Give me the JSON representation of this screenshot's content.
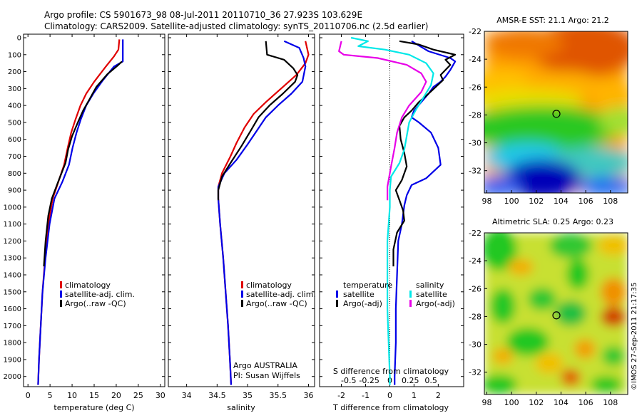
{
  "header": {
    "line1": "Argo profile: CS 5901673_98 08-Jul-2011 20110710_36 27.923S 103.629E",
    "line2": "Climatology: CARS2009. Satellite-adjusted climatology: synTS_20110706.nc (2.5d earlier)"
  },
  "side_stamp": "©IMOS 27-Sep-2011 21:17:35",
  "colors": {
    "climatology": "#e00000",
    "satellite_adj": "#0000e8",
    "argo": "#000000",
    "sat_cyan": "#00e8e8",
    "argo_magenta": "#e800e8"
  },
  "chart_data": [
    {
      "type": "line",
      "id": "temperature",
      "xlabel": "temperature (deg C)",
      "ylabel": "",
      "xlim": [
        -1,
        31
      ],
      "ylim": [
        0,
        2060
      ],
      "y_reversed": true,
      "xticks": [
        0,
        5,
        10,
        15,
        20,
        25,
        30
      ],
      "xtick_labels": [
        "0",
        "5",
        "10",
        "15",
        "20",
        "25",
        "30"
      ],
      "yticks": [
        0,
        100,
        200,
        300,
        400,
        500,
        600,
        700,
        800,
        900,
        1000,
        1100,
        1200,
        1300,
        1400,
        1500,
        1600,
        1700,
        1800,
        1900,
        2000
      ],
      "ytick_labels": [
        "0",
        "100",
        "200",
        "300",
        "400",
        "500",
        "600",
        "700",
        "800",
        "900",
        "1000",
        "1100",
        "1200",
        "1300",
        "1400",
        "1500",
        "1600",
        "1700",
        "1800",
        "1900",
        "2000"
      ],
      "legend": [
        "climatology",
        "satellite-adj. clim.",
        "Argo(..raw -QC)"
      ],
      "legend_position": "lower-center",
      "series": [
        {
          "name": "climatology",
          "color": "#e00000",
          "points": [
            [
              20.7,
              10
            ],
            [
              20.5,
              70
            ],
            [
              19.5,
              110
            ],
            [
              17.5,
              175
            ],
            [
              15.0,
              260
            ],
            [
              13.2,
              330
            ],
            [
              11.9,
              400
            ],
            [
              10.8,
              480
            ],
            [
              9.8,
              560
            ],
            [
              9.0,
              650
            ],
            [
              8.2,
              750
            ],
            [
              6.9,
              850
            ],
            [
              5.6,
              950
            ],
            [
              4.6,
              1100
            ],
            [
              3.9,
              1300
            ],
            [
              3.3,
              1500
            ],
            [
              2.9,
              1700
            ],
            [
              2.5,
              1900
            ],
            [
              2.3,
              2050
            ]
          ]
        },
        {
          "name": "satellite-adj. clim.",
          "color": "#0000e8",
          "points": [
            [
              21.5,
              10
            ],
            [
              21.5,
              140
            ],
            [
              19.5,
              170
            ],
            [
              17.0,
              250
            ],
            [
              14.8,
              330
            ],
            [
              13.2,
              400
            ],
            [
              12.0,
              480
            ],
            [
              11.0,
              560
            ],
            [
              10.1,
              650
            ],
            [
              9.3,
              750
            ],
            [
              7.8,
              850
            ],
            [
              6.0,
              950
            ],
            [
              4.9,
              1100
            ],
            [
              4.0,
              1300
            ],
            [
              3.3,
              1500
            ],
            [
              2.9,
              1700
            ],
            [
              2.5,
              1900
            ],
            [
              2.3,
              2050
            ]
          ]
        },
        {
          "name": "Argo(..raw -QC)",
          "color": "#000000",
          "points": [
            [
              21.3,
              140
            ],
            [
              20.3,
              165
            ],
            [
              18.0,
              215
            ],
            [
              15.5,
              290
            ],
            [
              13.8,
              370
            ],
            [
              12.5,
              430
            ],
            [
              11.3,
              500
            ],
            [
              10.0,
              580
            ],
            [
              9.1,
              660
            ],
            [
              8.5,
              740
            ],
            [
              7.0,
              840
            ],
            [
              5.4,
              950
            ],
            [
              4.6,
              1050
            ],
            [
              4.0,
              1200
            ],
            [
              3.6,
              1350
            ]
          ]
        }
      ]
    },
    {
      "type": "line",
      "id": "salinity",
      "xlabel": "salinity",
      "ylabel": "",
      "xlim": [
        33.7,
        36.1
      ],
      "ylim": [
        0,
        2060
      ],
      "y_reversed": true,
      "xticks": [
        34,
        34.5,
        35,
        35.5,
        36
      ],
      "xtick_labels": [
        "34",
        "34.5",
        "35",
        "35.5",
        "36"
      ],
      "legend": [
        "climatology",
        "satellite-adj. clim.",
        "Argo(..raw -QC)"
      ],
      "legend_position": "lower-right",
      "annotation": [
        "Argo AUSTRALIA",
        "PI: Susan Wijffels"
      ],
      "series": [
        {
          "name": "climatology",
          "color": "#e00000",
          "points": [
            [
              35.95,
              20
            ],
            [
              36.0,
              100
            ],
            [
              35.95,
              150
            ],
            [
              35.8,
              220
            ],
            [
              35.55,
              300
            ],
            [
              35.3,
              380
            ],
            [
              35.1,
              450
            ],
            [
              34.95,
              530
            ],
            [
              34.82,
              620
            ],
            [
              34.72,
              700
            ],
            [
              34.58,
              800
            ],
            [
              34.52,
              880
            ],
            [
              34.52,
              950
            ],
            [
              34.55,
              1100
            ],
            [
              34.6,
              1300
            ],
            [
              34.64,
              1500
            ],
            [
              34.68,
              1700
            ],
            [
              34.71,
              1900
            ],
            [
              34.73,
              2050
            ]
          ]
        },
        {
          "name": "satellite-adj. clim.",
          "color": "#0000e8",
          "points": [
            [
              35.6,
              20
            ],
            [
              35.85,
              60
            ],
            [
              35.92,
              120
            ],
            [
              35.95,
              170
            ],
            [
              35.9,
              260
            ],
            [
              35.72,
              330
            ],
            [
              35.5,
              400
            ],
            [
              35.3,
              470
            ],
            [
              35.15,
              550
            ],
            [
              35.0,
              630
            ],
            [
              34.82,
              720
            ],
            [
              34.62,
              800
            ],
            [
              34.52,
              880
            ],
            [
              34.52,
              950
            ],
            [
              34.55,
              1100
            ],
            [
              34.6,
              1300
            ],
            [
              34.64,
              1500
            ],
            [
              34.68,
              1700
            ],
            [
              34.71,
              1900
            ],
            [
              34.73,
              2050
            ]
          ]
        },
        {
          "name": "Argo(..raw -QC)",
          "color": "#000000",
          "points": [
            [
              35.3,
              20
            ],
            [
              35.32,
              100
            ],
            [
              35.6,
              130
            ],
            [
              35.75,
              180
            ],
            [
              35.82,
              220
            ],
            [
              35.78,
              260
            ],
            [
              35.58,
              330
            ],
            [
              35.36,
              400
            ],
            [
              35.18,
              470
            ],
            [
              35.05,
              550
            ],
            [
              34.9,
              640
            ],
            [
              34.72,
              740
            ],
            [
              34.58,
              820
            ],
            [
              34.52,
              900
            ],
            [
              34.52,
              960
            ]
          ]
        }
      ]
    },
    {
      "type": "line",
      "id": "difference",
      "xlabel": "T difference from climatology",
      "xlabel_top": "S difference from climatology",
      "xlim": [
        -2.9,
        3.05
      ],
      "ylim": [
        0,
        2060
      ],
      "y_reversed": true,
      "xticks": [
        -2,
        -1,
        0,
        1,
        2
      ],
      "xtick_labels": [
        "-2",
        "-1",
        "0",
        "1",
        "2"
      ],
      "xticks_top": [
        -0.5,
        -0.25,
        0,
        0.25,
        0.5
      ],
      "xtick_labels_top": [
        "-0.5",
        "-0.25",
        "0",
        "0.25",
        "0.5"
      ],
      "zero_line": "dotted",
      "legend_left_title": "temperature",
      "legend_left": [
        "satellite",
        "Argo(-adj)"
      ],
      "legend_right_title": "salinity",
      "legend_right": [
        "satellite",
        "Argo(-adj)"
      ],
      "series": [
        {
          "name": "satellite",
          "group": "temperature",
          "color": "#0000e8",
          "points": [
            [
              0.9,
              20
            ],
            [
              1.6,
              80
            ],
            [
              2.5,
              120
            ],
            [
              2.7,
              140
            ],
            [
              2.5,
              190
            ],
            [
              2.3,
              230
            ],
            [
              2.1,
              260
            ],
            [
              1.8,
              290
            ],
            [
              1.6,
              330
            ],
            [
              1.3,
              380
            ],
            [
              1.0,
              430
            ],
            [
              0.9,
              470
            ],
            [
              1.2,
              500
            ],
            [
              1.7,
              560
            ],
            [
              2.0,
              650
            ],
            [
              2.1,
              750
            ],
            [
              1.5,
              830
            ],
            [
              0.9,
              870
            ],
            [
              0.7,
              930
            ],
            [
              0.6,
              990
            ],
            [
              0.5,
              1100
            ],
            [
              0.35,
              1200
            ],
            [
              0.3,
              1400
            ],
            [
              0.25,
              1600
            ],
            [
              0.25,
              1800
            ],
            [
              0.2,
              2000
            ],
            [
              0.2,
              2050
            ]
          ]
        },
        {
          "name": "Argo(-adj)",
          "group": "temperature",
          "color": "#000000",
          "points": [
            [
              0.4,
              20
            ],
            [
              1.2,
              40
            ],
            [
              1.8,
              70
            ],
            [
              2.7,
              100
            ],
            [
              2.3,
              130
            ],
            [
              2.5,
              160
            ],
            [
              2.1,
              220
            ],
            [
              2.2,
              250
            ],
            [
              1.9,
              290
            ],
            [
              1.6,
              330
            ],
            [
              1.2,
              380
            ],
            [
              0.9,
              430
            ],
            [
              0.6,
              470
            ],
            [
              0.4,
              520
            ],
            [
              0.45,
              600
            ],
            [
              0.6,
              680
            ],
            [
              0.7,
              760
            ],
            [
              0.5,
              840
            ],
            [
              0.25,
              900
            ],
            [
              0.4,
              960
            ],
            [
              0.55,
              1020
            ],
            [
              0.6,
              1080
            ],
            [
              0.3,
              1150
            ],
            [
              0.15,
              1250
            ],
            [
              0.15,
              1350
            ]
          ]
        },
        {
          "name": "satellite",
          "group": "salinity",
          "color": "#00e8e8",
          "points": [
            [
              -1.6,
              0
            ],
            [
              -0.9,
              20
            ],
            [
              -1.3,
              50
            ],
            [
              -0.2,
              70
            ],
            [
              0.8,
              100
            ],
            [
              1.5,
              150
            ],
            [
              1.8,
              210
            ],
            [
              1.7,
              280
            ],
            [
              1.4,
              350
            ],
            [
              1.1,
              420
            ],
            [
              0.8,
              500
            ],
            [
              0.7,
              580
            ],
            [
              0.6,
              660
            ],
            [
              0.4,
              740
            ],
            [
              0.05,
              820
            ],
            [
              0.0,
              900
            ],
            [
              0.0,
              1000
            ],
            [
              -0.1,
              1200
            ],
            [
              -0.1,
              1400
            ],
            [
              -0.1,
              1600
            ],
            [
              -0.05,
              1800
            ],
            [
              0.0,
              2000
            ],
            [
              0.0,
              2050
            ]
          ]
        },
        {
          "name": "Argo(-adj)",
          "group": "salinity",
          "color": "#e800e8",
          "points": [
            [
              -2.0,
              20
            ],
            [
              -2.1,
              80
            ],
            [
              -1.9,
              100
            ],
            [
              -0.5,
              120
            ],
            [
              0.7,
              160
            ],
            [
              1.3,
              210
            ],
            [
              1.5,
              260
            ],
            [
              1.3,
              320
            ],
            [
              0.8,
              400
            ],
            [
              0.5,
              470
            ],
            [
              0.3,
              560
            ],
            [
              0.2,
              650
            ],
            [
              0.05,
              760
            ],
            [
              -0.1,
              880
            ],
            [
              -0.1,
              960
            ]
          ]
        }
      ]
    },
    {
      "type": "heatmap",
      "id": "sst_map",
      "title": "AMSR-E SST: 21.1  Argo: 21.2",
      "xlim": [
        97.8,
        109.4
      ],
      "ylim": [
        -33.6,
        -22
      ],
      "xticks": [
        98,
        100,
        102,
        104,
        106,
        108
      ],
      "xtick_labels": [
        "98",
        "100",
        "102",
        "104",
        "106",
        "108"
      ],
      "yticks": [
        -22,
        -24,
        -26,
        -28,
        -30,
        -32
      ],
      "ytick_labels": [
        "-22",
        "-24",
        "-26",
        "-28",
        "-30",
        "-32"
      ],
      "marker": [
        103.63,
        -27.92
      ],
      "colormap": "jet"
    },
    {
      "type": "heatmap",
      "id": "sla_map",
      "title": "Altimetric SLA: 0.25  Argo: 0.23",
      "xlim": [
        97.8,
        109.4
      ],
      "ylim": [
        -33.6,
        -22
      ],
      "xticks": [
        98,
        100,
        102,
        104,
        106,
        108
      ],
      "xtick_labels": [
        "98",
        "100",
        "102",
        "104",
        "106",
        "108"
      ],
      "yticks": [
        -22,
        -24,
        -26,
        -28,
        -30,
        -32
      ],
      "ytick_labels": [
        "-22",
        "-24",
        "-26",
        "-28",
        "-30",
        "-32"
      ],
      "marker": [
        103.63,
        -27.92
      ],
      "colormap": "jet"
    }
  ]
}
